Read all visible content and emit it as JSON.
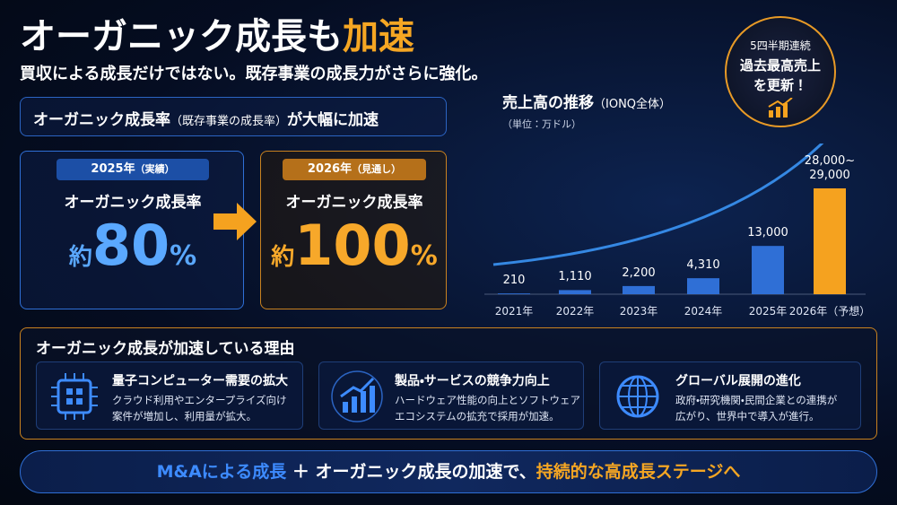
{
  "header": {
    "title_main": "オーガニック成長も",
    "title_accent": "加速",
    "subtitle": "買収による成長だけではない。既存事業の成長力がさらに強化。"
  },
  "highlight": {
    "label": "オーガニック成長率",
    "note": "（既存事業の成長率）",
    "tail": "が大幅に加速"
  },
  "cards": [
    {
      "badge": "2025年",
      "badge_note": "（実績）",
      "label": "オーガニック成長率",
      "prefix": "約",
      "value": 80,
      "unit": "%"
    },
    {
      "badge": "2026年",
      "badge_note": "（見通し）",
      "label": "オーガニック成長率",
      "prefix": "約",
      "value": 100,
      "unit": "%"
    }
  ],
  "chart_data": {
    "type": "bar",
    "title": "売上高の推移",
    "subtitle": "（IONQ全体）",
    "unit_note": "（単位：万ドル）",
    "categories": [
      "2021年",
      "2022年",
      "2023年",
      "2024年",
      "2025年",
      "2026年（予想）"
    ],
    "values": [
      210,
      1110,
      2200,
      4310,
      13000,
      28500
    ],
    "value_labels": [
      "210",
      "1,110",
      "2,200",
      "4,310",
      "13,000",
      "28,000~\n29,000"
    ],
    "colors": [
      "#2f6fd6",
      "#2f6fd6",
      "#2f6fd6",
      "#2f6fd6",
      "#2f6fd6",
      "#f5a21f"
    ]
  },
  "badge": {
    "lines": [
      "5四半期連続",
      "過去最高売上",
      "を更新！"
    ]
  },
  "reasons": {
    "title": "オーガニック成長が加速している理由",
    "items": [
      {
        "title": "量子コンピューター需要の拡大",
        "lines": [
          "クラウド利用やエンタープライズ向け",
          "案件が増加し、利用量が拡大。"
        ]
      },
      {
        "title": "製品・サービスの競争力向上",
        "lines": [
          "ハードウェア性能の向上とソフトウェア",
          "エコシステムの拡充で採用が加速。"
        ]
      },
      {
        "title": "グローバル展開の進化",
        "lines": [
          "政府・研究機関・民間企業との連携が",
          "広がり、世界中で導入が進行。"
        ]
      }
    ]
  },
  "footer": {
    "part1": "M&Aによる成長",
    "plus": "＋",
    "part2": "オーガニック成長の加速で、",
    "part3": "持続的な高成長ステージへ"
  }
}
